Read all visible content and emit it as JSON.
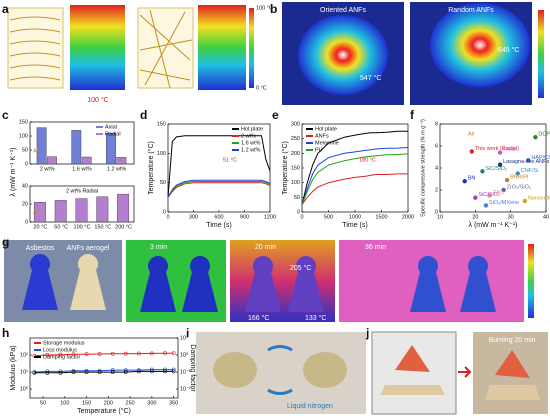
{
  "panels": {
    "letters": [
      "a",
      "b",
      "c",
      "d",
      "e",
      "f",
      "g",
      "h",
      "i",
      "j"
    ],
    "a": {
      "hot": "100 °C",
      "bar_top": "100 °C",
      "bar_bottom": "0 °C"
    },
    "b": {
      "left_title": "Oriented ANFs",
      "right_title": "Random ANFs",
      "left_temp": "547 °C",
      "right_temp": "645 °C"
    },
    "g": {
      "left": "Asbestos",
      "right": "ANFs aerogel",
      "t1": "3 min",
      "t2": "20 min",
      "t3": "36 min",
      "temp_top": "205 °C",
      "temp_left": "166 °C",
      "temp_right": "133 °C"
    },
    "i": {
      "caption": "Liquid nitrogen"
    },
    "j": {
      "caption": "Burning 20 min"
    }
  },
  "chart_data": [
    {
      "type": "bar",
      "y_label": "λ (mW m⁻¹ K⁻¹)",
      "annotation": "Air",
      "legend": "upper right",
      "categories": [
        "2 wt%",
        "1.6 wt%",
        "1.2 wt%"
      ],
      "series": [
        {
          "name": "Axial",
          "color": "#7080d8",
          "values": [
            130,
            120,
            110
          ]
        },
        {
          "name": "Radial",
          "color": "#b57fd1",
          "values": [
            26,
            25,
            24
          ]
        }
      ],
      "ylim": [
        0,
        150
      ],
      "yticks": [
        0,
        50,
        100,
        150
      ]
    },
    {
      "type": "bar",
      "title": "2 wt% Radial",
      "annotation": "Air",
      "color": "#b57fd1",
      "categories": [
        "20 °C",
        "50 °C",
        "100 °C",
        "150 °C",
        "200 °C"
      ],
      "values": [
        22,
        24,
        26,
        28,
        31
      ],
      "ylim": [
        0,
        40
      ],
      "yticks": [
        0,
        20,
        40
      ]
    },
    {
      "type": "line",
      "x_label": "Time (s)",
      "y_label": "Temperature (°C)",
      "annotation": "51 °C",
      "legend": "upper right",
      "x": [
        0,
        50,
        100,
        200,
        300,
        400,
        600,
        800,
        1000,
        1100,
        1150,
        1200
      ],
      "series": [
        {
          "name": "Hot plate",
          "color": "#000000",
          "values": [
            25,
            120,
            128,
            130,
            130,
            130,
            130,
            130,
            130,
            130,
            90,
            70
          ]
        },
        {
          "name": "2 wt%",
          "color": "#e02020",
          "values": [
            25,
            35,
            42,
            48,
            50,
            50,
            50,
            50,
            50,
            50,
            48,
            45
          ]
        },
        {
          "name": "1.6 wt%",
          "color": "#20a020",
          "values": [
            25,
            37,
            44,
            50,
            52,
            52,
            52,
            52,
            52,
            52,
            50,
            47
          ]
        },
        {
          "name": "1.2 wt%",
          "color": "#2040e0",
          "values": [
            25,
            38,
            46,
            52,
            54,
            54,
            54,
            54,
            54,
            54,
            52,
            49
          ]
        }
      ],
      "xlim": [
        0,
        1200
      ],
      "xticks": [
        0,
        300,
        600,
        900,
        1200
      ],
      "ylim": [
        0,
        150
      ],
      "yticks": [
        0,
        50,
        100,
        150
      ]
    },
    {
      "type": "line",
      "x_label": "Time (s)",
      "y_label": "Temperature (°C)",
      "annotation": "180 °C",
      "legend": "upper left",
      "x": [
        0,
        100,
        200,
        300,
        500,
        800,
        1000,
        1200,
        1300,
        1400,
        1600,
        1800,
        2000
      ],
      "series": [
        {
          "name": "Hot plate",
          "color": "#000000",
          "values": [
            25,
            100,
            160,
            200,
            235,
            255,
            262,
            268,
            270,
            270,
            272,
            275,
            275
          ]
        },
        {
          "name": "ANFs",
          "color": "#e02020",
          "values": [
            25,
            50,
            70,
            85,
            100,
            112,
            118,
            122,
            125,
            128,
            128,
            130,
            130
          ]
        },
        {
          "name": "Melamine",
          "color": "#2040e0",
          "values": [
            25,
            80,
            130,
            160,
            185,
            200,
            205,
            210,
            212,
            215,
            217,
            218,
            220
          ]
        },
        {
          "name": "PU",
          "color": "#20a020",
          "values": [
            25,
            70,
            110,
            135,
            160,
            175,
            182,
            188,
            190,
            192,
            195,
            196,
            198
          ]
        }
      ],
      "xlim": [
        0,
        2000
      ],
      "xticks": [
        0,
        500,
        1000,
        1500,
        2000
      ],
      "ylim": [
        0,
        300
      ],
      "yticks": [
        0,
        50,
        100,
        150,
        200,
        250,
        300
      ]
    },
    {
      "type": "scatter",
      "x_label": "λ (mW m⁻¹ K⁻¹)",
      "y_label": "Specific compressive strength (N m g⁻¹)",
      "annotation": "Air",
      "points": [
        {
          "label": "This work (Radial)",
          "color": "#e02020",
          "x": 19,
          "y": 5.5
        },
        {
          "label": "DCPA",
          "color": "#208a20",
          "x": 37,
          "y": 6.8
        },
        {
          "label": "PANI",
          "color": "#c060d0",
          "x": 27,
          "y": 5.4
        },
        {
          "label": "HAP/CS",
          "color": "#4060c0",
          "x": 35,
          "y": 4.7
        },
        {
          "label": "Lasagna-like ANFs",
          "color": "#203080",
          "x": 27,
          "y": 4.3
        },
        {
          "label": "SiC/SiO₂",
          "color": "#208080",
          "x": 22,
          "y": 3.7
        },
        {
          "label": "CNF/Si",
          "color": "#3090d0",
          "x": 32,
          "y": 3.5
        },
        {
          "label": "BN",
          "color": "#2030c0",
          "x": 17,
          "y": 2.8
        },
        {
          "label": "BNR/PI",
          "color": "#c08030",
          "x": 29,
          "y": 2.9
        },
        {
          "label": "ZrO₂/SiO₂",
          "color": "#6060a0",
          "x": 28,
          "y": 2.0
        },
        {
          "label": "SiC/SiO₂",
          "color": "#a040c0",
          "x": 20,
          "y": 1.3
        },
        {
          "label": "ZAO",
          "color": "#e080a0",
          "x": 24,
          "y": 1.5
        },
        {
          "label": "Nanocellulose",
          "color": "#d0a020",
          "x": 34,
          "y": 1.0
        },
        {
          "label": "SiO₂/MXene",
          "color": "#4080e0",
          "x": 23,
          "y": 0.6
        }
      ],
      "xlim": [
        10,
        40
      ],
      "xticks": [
        10,
        20,
        30,
        40
      ],
      "ylim": [
        0,
        8
      ],
      "yticks": [
        0,
        2,
        4,
        6,
        8
      ]
    },
    {
      "type": "line",
      "x_label": "Temperature (°C)",
      "y_label": "Modulus (kPa)",
      "y2_label": "Damping factor",
      "log": true,
      "legend": "upper left",
      "markers": true,
      "x": [
        30,
        60,
        90,
        120,
        150,
        180,
        210,
        240,
        270,
        300,
        330,
        350
      ],
      "series": [
        {
          "name": "Storage modulus",
          "color": "#e02020",
          "values": [
            90,
            100,
            105,
            110,
            112,
            115,
            118,
            120,
            122,
            125,
            128,
            130
          ]
        },
        {
          "name": "Loss modulus",
          "color": "#2050e0",
          "values": [
            10,
            11,
            11,
            12,
            12,
            12,
            13,
            13,
            13,
            14,
            14,
            14
          ]
        },
        {
          "name": "Damping factor",
          "color": "#000000",
          "axis": "y2",
          "values": [
            0.09,
            0.09,
            0.09,
            0.1,
            0.1,
            0.1,
            0.1,
            0.1,
            0.11,
            0.11,
            0.11,
            0.11
          ]
        }
      ],
      "xlim": [
        20,
        360
      ],
      "xticks": [
        50,
        100,
        150,
        200,
        250,
        300,
        350
      ],
      "ylim": [
        0.3,
        1000
      ],
      "yticks": [
        {
          "value": 1,
          "label": "10⁰"
        },
        {
          "value": 10,
          "label": "10¹"
        },
        {
          "value": 100,
          "label": "10²"
        }
      ],
      "y2lim": [
        0.003,
        10
      ],
      "y2ticks": [
        {
          "value": 0.01,
          "label": "10⁻²"
        },
        {
          "value": 0.1,
          "label": "10⁻¹"
        },
        {
          "value": 1,
          "label": "10⁰"
        },
        {
          "value": 10,
          "label": "10¹"
        }
      ]
    }
  ]
}
